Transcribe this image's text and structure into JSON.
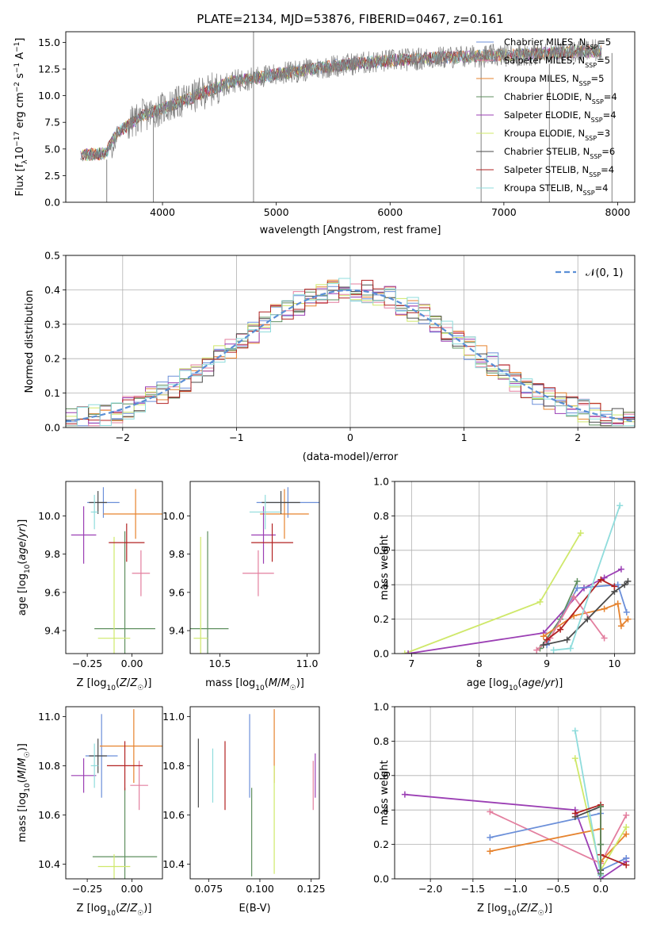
{
  "title": "PLATE=2134, MJD=53876, FIBERID=0467, z=0.161",
  "colors": {
    "chabrier_miles": "#6b8fd9",
    "salpeter_miles": "#e37f9f",
    "kroupa_miles": "#e6832e",
    "chabrier_elodie": "#5f8f5f",
    "salpeter_elodie": "#9b3fb4",
    "kroupa_elodie": "#cfe86a",
    "chabrier_stelib": "#4a4a4a",
    "salpeter_stelib": "#b22222",
    "kroupa_stelib": "#8fdcdc"
  },
  "chart_data": [
    {
      "id": "spectrum",
      "type": "line",
      "xlabel": "wavelength [Angstrom, rest frame]",
      "ylabel": "Flux [f_λ 10^-17 erg cm^-2 s^-1 A^-1]",
      "xlim": [
        3150,
        8150
      ],
      "ylim": [
        0,
        16
      ],
      "xticks": [
        4000,
        5000,
        6000,
        7000,
        8000
      ],
      "yticks": [
        0.0,
        2.5,
        5.0,
        7.5,
        10.0,
        12.5,
        15.0
      ],
      "legend_position": "upper-right",
      "legend": [
        {
          "label": "Chabrier MILES, N_SSP=5",
          "color": "#6b8fd9"
        },
        {
          "label": "Salpeter MILES, N_SSP=5",
          "color": "#e37f9f"
        },
        {
          "label": "Kroupa MILES, N_SSP=5",
          "color": "#e6832e"
        },
        {
          "label": "Chabrier ELODIE, N_SSP=4",
          "color": "#5f8f5f"
        },
        {
          "label": "Salpeter ELODIE, N_SSP=4",
          "color": "#9b3fb4"
        },
        {
          "label": "Kroupa ELODIE, N_SSP=3",
          "color": "#cfe86a"
        },
        {
          "label": "Chabrier STELIB, N_SSP=6",
          "color": "#4a4a4a"
        },
        {
          "label": "Salpeter STELIB, N_SSP=4",
          "color": "#b22222"
        },
        {
          "label": "Kroupa STELIB, N_SSP=4",
          "color": "#8fdcdc"
        }
      ],
      "continuum": [
        [
          3280,
          4.4
        ],
        [
          3500,
          4.6
        ],
        [
          3600,
          6.5
        ],
        [
          3800,
          8.0
        ],
        [
          4000,
          8.8
        ],
        [
          4300,
          10.0
        ],
        [
          4600,
          11.3
        ],
        [
          5000,
          12.0
        ],
        [
          5500,
          12.8
        ],
        [
          6000,
          13.3
        ],
        [
          6500,
          13.6
        ],
        [
          7000,
          13.8
        ],
        [
          7400,
          14.0
        ],
        [
          7800,
          14.2
        ]
      ],
      "spikes": [
        [
          4800,
          0.0,
          16.0
        ],
        [
          3510,
          0.0,
          4.0
        ],
        [
          3920,
          0.0,
          8.0
        ],
        [
          6800,
          0.0,
          14.0
        ],
        [
          7400,
          0.0,
          13.0
        ],
        [
          7950,
          0.0,
          14.0
        ]
      ]
    },
    {
      "id": "residuals",
      "type": "histogram",
      "xlabel": "(data-model)/error",
      "ylabel": "Normed distribution",
      "xlim": [
        -2.5,
        2.5
      ],
      "ylim": [
        0,
        0.5
      ],
      "xticks": [
        -2,
        -1,
        0,
        1,
        2
      ],
      "yticks": [
        0.0,
        0.1,
        0.2,
        0.3,
        0.4,
        0.5
      ],
      "grid": true,
      "legend_position": "upper-right",
      "legend": [
        {
          "label": "𝒩(0, 1)",
          "color": "#5b8fd6"
        }
      ],
      "bin_width": 0.1
    },
    {
      "id": "age_vs_Z",
      "type": "errorbar",
      "xlabel": "Z [log10(Z/Z☉)]",
      "ylabel": "age  [log10(age/yr)]",
      "xlim": [
        -0.37,
        0.17
      ],
      "ylim": [
        9.28,
        10.18
      ],
      "xticks": [
        -0.25,
        0.0
      ],
      "xtick_labels": [
        "−0.25",
        "0.00"
      ],
      "yticks": [
        9.4,
        9.6,
        9.8,
        10.0
      ],
      "points": [
        {
          "x": -0.16,
          "xerr": 0.09,
          "y": 10.07,
          "yerr": 0.08,
          "color": "#6b8fd9"
        },
        {
          "x": 0.05,
          "xerr": 0.05,
          "y": 9.7,
          "yerr": 0.12,
          "color": "#e37f9f"
        },
        {
          "x": 0.02,
          "xerr": 0.18,
          "y": 10.01,
          "yerr": 0.13,
          "color": "#e6832e"
        },
        {
          "x": -0.04,
          "xerr": 0.17,
          "y": 9.41,
          "yerr": 0.51,
          "color": "#5f8f5f"
        },
        {
          "x": -0.27,
          "xerr": 0.07,
          "y": 9.9,
          "yerr": 0.15,
          "color": "#9b3fb4"
        },
        {
          "x": -0.1,
          "xerr": 0.09,
          "y": 9.36,
          "yerr": 0.53,
          "color": "#cfe86a"
        },
        {
          "x": -0.19,
          "xerr": 0.05,
          "y": 10.07,
          "yerr": 0.06,
          "color": "#4a4a4a"
        },
        {
          "x": -0.03,
          "xerr": 0.1,
          "y": 9.86,
          "yerr": 0.1,
          "color": "#b22222"
        },
        {
          "x": -0.21,
          "xerr": 0.02,
          "y": 10.02,
          "yerr": 0.09,
          "color": "#8fdcdc"
        }
      ]
    },
    {
      "id": "age_vs_mass",
      "type": "errorbar",
      "xlabel": "mass [log10(M/M☉)]",
      "ylabel": "",
      "xlim": [
        10.33,
        11.07
      ],
      "ylim": [
        9.28,
        10.18
      ],
      "xticks": [
        10.5,
        11.0
      ],
      "xtick_labels": [
        "10.5",
        "11.0"
      ],
      "yticks": [
        9.4,
        9.6,
        9.8,
        10.0
      ],
      "points": [
        {
          "x": 10.89,
          "xerr": 0.18,
          "y": 10.07,
          "yerr": 0.08,
          "color": "#6b8fd9"
        },
        {
          "x": 10.72,
          "xerr": 0.09,
          "y": 9.7,
          "yerr": 0.12,
          "color": "#e37f9f"
        },
        {
          "x": 10.87,
          "xerr": 0.14,
          "y": 10.01,
          "yerr": 0.13,
          "color": "#e6832e"
        },
        {
          "x": 10.43,
          "xerr": 0.12,
          "y": 9.41,
          "yerr": 0.51,
          "color": "#5f8f5f"
        },
        {
          "x": 10.75,
          "xerr": 0.07,
          "y": 9.9,
          "yerr": 0.15,
          "color": "#9b3fb4"
        },
        {
          "x": 10.39,
          "xerr": 0.04,
          "y": 9.36,
          "yerr": 0.53,
          "color": "#cfe86a"
        },
        {
          "x": 10.85,
          "xerr": 0.11,
          "y": 10.07,
          "yerr": 0.06,
          "color": "#4a4a4a"
        },
        {
          "x": 10.8,
          "xerr": 0.12,
          "y": 9.86,
          "yerr": 0.1,
          "color": "#b22222"
        },
        {
          "x": 10.76,
          "xerr": 0.09,
          "y": 10.02,
          "yerr": 0.09,
          "color": "#8fdcdc"
        }
      ]
    },
    {
      "id": "weight_vs_age",
      "type": "line",
      "xlabel": "age  [log10(age/yr)]",
      "ylabel": "mass weight",
      "xlim": [
        6.75,
        10.3
      ],
      "ylim": [
        0,
        1.0
      ],
      "xticks": [
        7,
        8,
        9,
        10
      ],
      "yticks": [
        0.0,
        0.2,
        0.4,
        0.6,
        0.8,
        1.0
      ],
      "grid": true,
      "series": [
        {
          "color": "#cfe86a",
          "x": [
            6.9,
            8.9,
            9.5
          ],
          "y": [
            0.0,
            0.3,
            0.7
          ]
        },
        {
          "color": "#9b3fb4",
          "x": [
            6.95,
            8.95,
            9.55,
            9.85,
            10.1
          ],
          "y": [
            0.0,
            0.12,
            0.38,
            0.44,
            0.49
          ]
        },
        {
          "color": "#5f8f5f",
          "x": [
            8.9,
            9.2,
            9.45
          ],
          "y": [
            0.03,
            0.2,
            0.42
          ]
        },
        {
          "color": "#6b8fd9",
          "x": [
            9.0,
            9.45,
            10.05,
            10.18
          ],
          "y": [
            0.05,
            0.38,
            0.4,
            0.24
          ]
        },
        {
          "color": "#e6832e",
          "x": [
            8.95,
            9.4,
            9.85,
            10.05,
            10.1,
            10.2
          ],
          "y": [
            0.1,
            0.22,
            0.26,
            0.29,
            0.16,
            0.2
          ]
        },
        {
          "color": "#e37f9f",
          "x": [
            8.85,
            9.05,
            9.4,
            9.85
          ],
          "y": [
            0.02,
            0.09,
            0.33,
            0.09
          ]
        },
        {
          "color": "#4a4a4a",
          "x": [
            8.95,
            9.3,
            9.6,
            10.0,
            10.15,
            10.2
          ],
          "y": [
            0.05,
            0.08,
            0.2,
            0.36,
            0.4,
            0.42
          ]
        },
        {
          "color": "#b22222",
          "x": [
            9.0,
            9.2,
            9.8,
            10.0
          ],
          "y": [
            0.08,
            0.14,
            0.43,
            0.39
          ]
        },
        {
          "color": "#8fdcdc",
          "x": [
            9.1,
            9.35,
            10.08
          ],
          "y": [
            0.02,
            0.03,
            0.86
          ]
        }
      ]
    },
    {
      "id": "mass_vs_Z",
      "type": "errorbar",
      "xlabel": "Z [log10(Z/Z☉)]",
      "ylabel": "mass [log10(M/M☉)]",
      "xlim": [
        -0.37,
        0.17
      ],
      "ylim": [
        10.34,
        11.04
      ],
      "xticks": [
        -0.25,
        0.0
      ],
      "xtick_labels": [
        "−0.25",
        "0.00"
      ],
      "yticks": [
        10.4,
        10.6,
        10.8,
        11.0
      ],
      "points": [
        {
          "x": -0.17,
          "xerr": 0.09,
          "y": 10.84,
          "yerr": 0.17,
          "color": "#6b8fd9"
        },
        {
          "x": 0.04,
          "xerr": 0.05,
          "y": 10.72,
          "yerr": 0.1,
          "color": "#e37f9f"
        },
        {
          "x": 0.01,
          "xerr": 0.19,
          "y": 10.88,
          "yerr": 0.15,
          "color": "#e6832e"
        },
        {
          "x": -0.04,
          "xerr": 0.18,
          "y": 10.43,
          "yerr": 0.28,
          "color": "#5f8f5f"
        },
        {
          "x": -0.27,
          "xerr": 0.07,
          "y": 10.76,
          "yerr": 0.07,
          "color": "#9b3fb4"
        },
        {
          "x": -0.1,
          "xerr": 0.09,
          "y": 10.39,
          "yerr": 0.05,
          "color": "#cfe86a"
        },
        {
          "x": -0.19,
          "xerr": 0.05,
          "y": 10.84,
          "yerr": 0.07,
          "color": "#4a4a4a"
        },
        {
          "x": -0.04,
          "xerr": 0.1,
          "y": 10.8,
          "yerr": 0.1,
          "color": "#b22222"
        },
        {
          "x": -0.21,
          "xerr": 0.02,
          "y": 10.8,
          "yerr": 0.09,
          "color": "#8fdcdc"
        }
      ]
    },
    {
      "id": "mass_vs_EBV",
      "type": "errorbar",
      "xlabel": "E(B-V)",
      "ylabel": "",
      "xlim": [
        0.066,
        0.129
      ],
      "ylim": [
        10.34,
        11.04
      ],
      "xticks": [
        0.075,
        0.1,
        0.125
      ],
      "xtick_labels": [
        "0.075",
        "0.100",
        "0.125"
      ],
      "yticks": [
        10.4,
        10.6,
        10.8,
        11.0
      ],
      "points": [
        {
          "x": 0.095,
          "xerr": 0,
          "y": 10.84,
          "yerr": 0.17,
          "color": "#6b8fd9"
        },
        {
          "x": 0.126,
          "xerr": 0,
          "y": 10.72,
          "yerr": 0.1,
          "color": "#e37f9f"
        },
        {
          "x": 0.107,
          "xerr": 0,
          "y": 10.88,
          "yerr": 0.15,
          "color": "#e6832e"
        },
        {
          "x": 0.096,
          "xerr": 0,
          "y": 10.53,
          "yerr": 0.18,
          "color": "#5f8f5f"
        },
        {
          "x": 0.127,
          "xerr": 0,
          "y": 10.76,
          "yerr": 0.09,
          "color": "#9b3fb4"
        },
        {
          "x": 0.107,
          "xerr": 0,
          "y": 10.58,
          "yerr": 0.22,
          "color": "#cfe86a"
        },
        {
          "x": 0.07,
          "xerr": 0,
          "y": 10.77,
          "yerr": 0.14,
          "color": "#4a4a4a"
        },
        {
          "x": 0.083,
          "xerr": 0,
          "y": 10.76,
          "yerr": 0.14,
          "color": "#b22222"
        },
        {
          "x": 0.077,
          "xerr": 0,
          "y": 10.76,
          "yerr": 0.11,
          "color": "#8fdcdc"
        }
      ]
    },
    {
      "id": "weight_vs_Z",
      "type": "line",
      "xlabel": "Z [log10(Z/Z☉)]",
      "ylabel": "mass weight",
      "xlim": [
        -2.42,
        0.4
      ],
      "ylim": [
        0,
        1.0
      ],
      "xticks": [
        -2.0,
        -1.5,
        -1.0,
        -0.5,
        0.0
      ],
      "xtick_labels": [
        "−2.0",
        "−1.5",
        "−1.0",
        "−0.5",
        "0.0"
      ],
      "yticks": [
        0.0,
        0.2,
        0.4,
        0.6,
        0.8,
        1.0
      ],
      "grid": true,
      "series": [
        {
          "color": "#9b3fb4",
          "x": [
            -2.3,
            -0.3,
            0.0,
            0.3,
            0.3
          ],
          "y": [
            0.49,
            0.4,
            0.0,
            0.1,
            0.12
          ]
        },
        {
          "color": "#e37f9f",
          "x": [
            -1.3,
            0.0,
            0.3
          ],
          "y": [
            0.39,
            0.09,
            0.37
          ]
        },
        {
          "color": "#6b8fd9",
          "x": [
            -1.3,
            0.0,
            0.0,
            0.3
          ],
          "y": [
            0.24,
            0.38,
            0.05,
            0.12
          ]
        },
        {
          "color": "#e6832e",
          "x": [
            -1.3,
            0.0,
            0.0,
            0.3
          ],
          "y": [
            0.16,
            0.29,
            0.1,
            0.26
          ]
        },
        {
          "color": "#cfe86a",
          "x": [
            -0.3,
            0.0,
            0.3
          ],
          "y": [
            0.7,
            0.05,
            0.3
          ]
        },
        {
          "color": "#8fdcdc",
          "x": [
            -0.3,
            0.0,
            0.0
          ],
          "y": [
            0.86,
            0.02,
            0.03
          ]
        },
        {
          "color": "#4a4a4a",
          "x": [
            -0.3,
            0.0,
            0.0,
            0.0
          ],
          "y": [
            0.36,
            0.42,
            0.2,
            0.05
          ]
        },
        {
          "color": "#b22222",
          "x": [
            -0.3,
            0.0,
            0.0,
            0.3
          ],
          "y": [
            0.38,
            0.43,
            0.14,
            0.08
          ]
        },
        {
          "color": "#5f8f5f",
          "x": [
            0.0,
            0.0,
            0.0
          ],
          "y": [
            0.42,
            0.2,
            0.03
          ]
        }
      ]
    }
  ]
}
